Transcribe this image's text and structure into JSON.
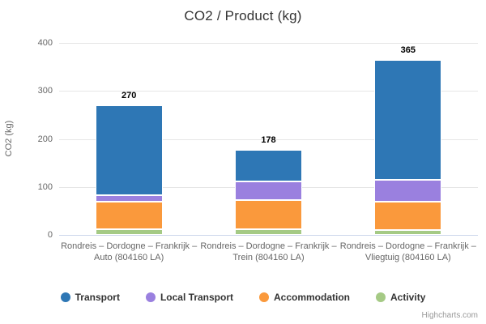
{
  "credits": "Highcharts.com",
  "chart_data": {
    "type": "bar",
    "stacking": "stacked-column",
    "title": "CO2 / Product (kg)",
    "xlabel": "",
    "ylabel": "CO2 (kg)",
    "ylim": [
      0,
      400
    ],
    "yticks": [
      0,
      100,
      200,
      300,
      400
    ],
    "grid": true,
    "legend_position": "bottom",
    "categories": [
      "Rondreis – Dordogne – Frankrijk – Auto (804160 LA)",
      "Rondreis – Dordogne – Frankrijk – Trein (804160 LA)",
      "Rondreis – Dordogne – Frankrijk – Vliegtuig (804160 LA)"
    ],
    "series": [
      {
        "name": "Transport",
        "color": "#2e77b5",
        "values": [
          187,
          66,
          250
        ]
      },
      {
        "name": "Local Transport",
        "color": "#9a80df",
        "values": [
          14,
          39,
          45
        ]
      },
      {
        "name": "Accommodation",
        "color": "#fa993c",
        "values": [
          58,
          62,
          60
        ]
      },
      {
        "name": "Activity",
        "color": "#a5ca85",
        "values": [
          11,
          11,
          10
        ]
      }
    ],
    "stack_totals": [
      270,
      178,
      365
    ],
    "colors": {
      "grid": "#e6e6e6",
      "axis_line": "#ccd6eb",
      "tick_text": "#666666",
      "title_text": "#333333",
      "total_text": "#000000",
      "credits_text": "#999999"
    }
  }
}
